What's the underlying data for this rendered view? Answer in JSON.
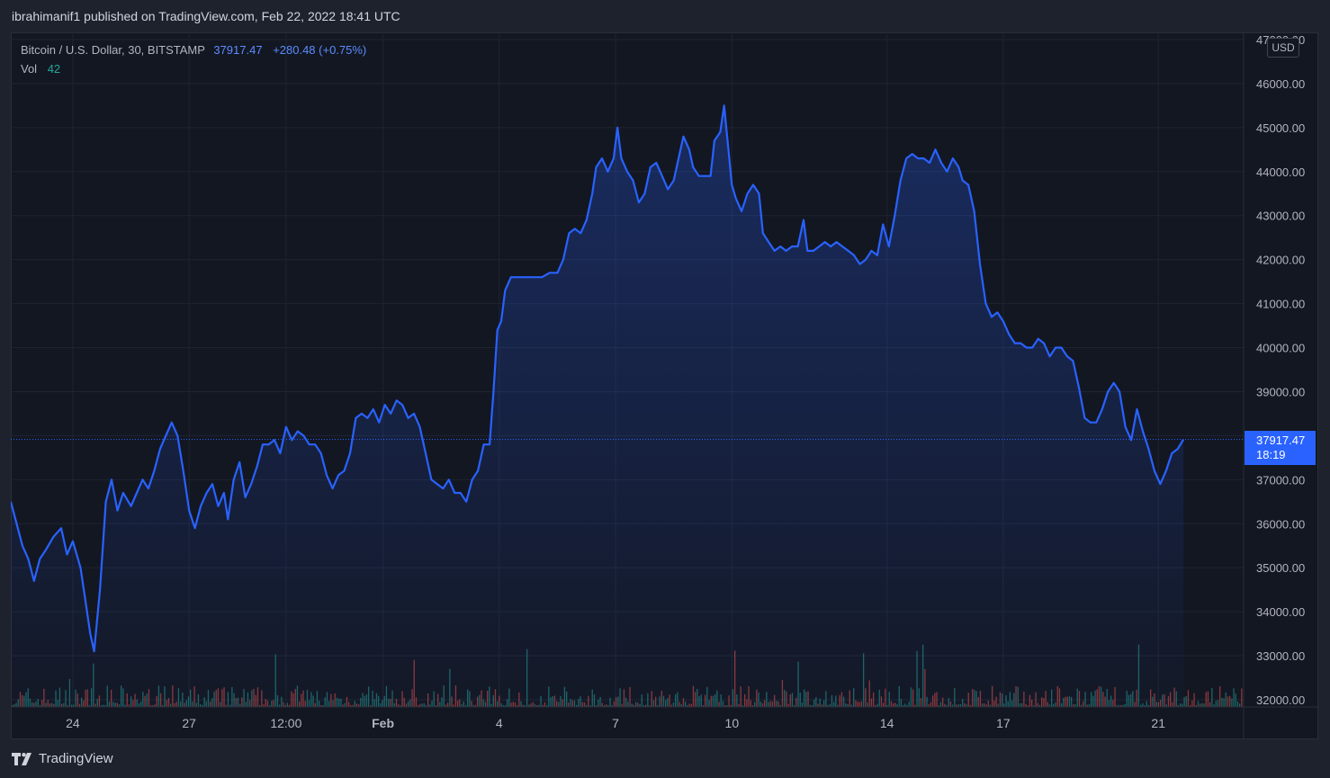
{
  "header": {
    "publish_text": "ibrahimanif1 published on TradingView.com, Feb 22, 2022 18:41 UTC"
  },
  "legend": {
    "symbol": "Bitcoin / U.S. Dollar, 30, BITSTAMP",
    "price": "37917.47",
    "change": "+280.48 (+0.75%)",
    "vol_label": "Vol",
    "vol_value": "42"
  },
  "currency": "USD",
  "price_tag": {
    "price": "37917.47",
    "countdown": "18:19"
  },
  "footer": {
    "brand": "TradingView"
  },
  "colors": {
    "line": "#2962ff",
    "volume_up": "#26a69a",
    "volume_down": "#ef5350",
    "background": "#131722"
  },
  "chart_data": {
    "type": "area",
    "title": "",
    "xlabel": "",
    "ylabel": "",
    "ylim": [
      32000,
      47000
    ],
    "yticks": [
      "32000.00",
      "33000.00",
      "34000.00",
      "35000.00",
      "36000.00",
      "37000.00",
      "38000.00",
      "39000.00",
      "40000.00",
      "41000.00",
      "42000.00",
      "43000.00",
      "44000.00",
      "45000.00",
      "46000.00",
      "47000.00"
    ],
    "xticks": [
      {
        "label": "24",
        "day": 2
      },
      {
        "label": "27",
        "day": 5
      },
      {
        "label": "12:00",
        "day": 7.5
      },
      {
        "label": "Feb",
        "day": 10
      },
      {
        "label": "4",
        "day": 13
      },
      {
        "label": "7",
        "day": 16
      },
      {
        "label": "10",
        "day": 19
      },
      {
        "label": "14",
        "day": 23
      },
      {
        "label": "17",
        "day": 26
      },
      {
        "label": "21",
        "day": 30
      }
    ],
    "x_range": [
      0.4,
      32.2
    ],
    "series": [
      {
        "points": [
          [
            0.4,
            36500
          ],
          [
            0.55,
            36000
          ],
          [
            0.7,
            35500
          ],
          [
            0.85,
            35200
          ],
          [
            1.0,
            34700
          ],
          [
            1.15,
            35200
          ],
          [
            1.3,
            35400
          ],
          [
            1.5,
            35700
          ],
          [
            1.7,
            35900
          ],
          [
            1.85,
            35300
          ],
          [
            2.0,
            35600
          ],
          [
            2.2,
            35000
          ],
          [
            2.35,
            34100
          ],
          [
            2.45,
            33500
          ],
          [
            2.55,
            33100
          ],
          [
            2.7,
            34500
          ],
          [
            2.85,
            36500
          ],
          [
            3.0,
            37000
          ],
          [
            3.15,
            36300
          ],
          [
            3.3,
            36700
          ],
          [
            3.5,
            36400
          ],
          [
            3.65,
            36700
          ],
          [
            3.8,
            37000
          ],
          [
            3.95,
            36800
          ],
          [
            4.1,
            37200
          ],
          [
            4.25,
            37700
          ],
          [
            4.4,
            38000
          ],
          [
            4.55,
            38300
          ],
          [
            4.7,
            38000
          ],
          [
            4.85,
            37200
          ],
          [
            5.0,
            36300
          ],
          [
            5.15,
            35900
          ],
          [
            5.3,
            36400
          ],
          [
            5.45,
            36700
          ],
          [
            5.6,
            36900
          ],
          [
            5.75,
            36400
          ],
          [
            5.9,
            36700
          ],
          [
            6.0,
            36100
          ],
          [
            6.15,
            37000
          ],
          [
            6.3,
            37400
          ],
          [
            6.45,
            36600
          ],
          [
            6.6,
            36900
          ],
          [
            6.75,
            37300
          ],
          [
            6.9,
            37800
          ],
          [
            7.05,
            37800
          ],
          [
            7.2,
            37900
          ],
          [
            7.35,
            37600
          ],
          [
            7.5,
            38200
          ],
          [
            7.65,
            37900
          ],
          [
            7.8,
            38100
          ],
          [
            7.95,
            38000
          ],
          [
            8.1,
            37800
          ],
          [
            8.25,
            37800
          ],
          [
            8.4,
            37600
          ],
          [
            8.55,
            37100
          ],
          [
            8.7,
            36800
          ],
          [
            8.85,
            37100
          ],
          [
            9.0,
            37200
          ],
          [
            9.15,
            37600
          ],
          [
            9.3,
            38400
          ],
          [
            9.45,
            38500
          ],
          [
            9.6,
            38400
          ],
          [
            9.75,
            38600
          ],
          [
            9.9,
            38300
          ],
          [
            10.05,
            38700
          ],
          [
            10.2,
            38500
          ],
          [
            10.35,
            38800
          ],
          [
            10.5,
            38700
          ],
          [
            10.65,
            38400
          ],
          [
            10.8,
            38500
          ],
          [
            10.95,
            38200
          ],
          [
            11.1,
            37600
          ],
          [
            11.25,
            37000
          ],
          [
            11.4,
            36900
          ],
          [
            11.55,
            36800
          ],
          [
            11.7,
            37000
          ],
          [
            11.85,
            36700
          ],
          [
            12.0,
            36700
          ],
          [
            12.15,
            36500
          ],
          [
            12.3,
            37000
          ],
          [
            12.45,
            37200
          ],
          [
            12.6,
            37800
          ],
          [
            12.75,
            37800
          ],
          [
            12.85,
            39000
          ],
          [
            12.95,
            40400
          ],
          [
            13.05,
            40600
          ],
          [
            13.15,
            41300
          ],
          [
            13.3,
            41600
          ],
          [
            13.5,
            41600
          ],
          [
            13.7,
            41600
          ],
          [
            13.9,
            41600
          ],
          [
            14.1,
            41600
          ],
          [
            14.3,
            41700
          ],
          [
            14.5,
            41700
          ],
          [
            14.65,
            42000
          ],
          [
            14.8,
            42600
          ],
          [
            14.95,
            42700
          ],
          [
            15.1,
            42600
          ],
          [
            15.25,
            42900
          ],
          [
            15.4,
            43500
          ],
          [
            15.5,
            44100
          ],
          [
            15.65,
            44300
          ],
          [
            15.8,
            44000
          ],
          [
            15.95,
            44300
          ],
          [
            16.05,
            45000
          ],
          [
            16.15,
            44300
          ],
          [
            16.3,
            44000
          ],
          [
            16.45,
            43800
          ],
          [
            16.6,
            43300
          ],
          [
            16.75,
            43500
          ],
          [
            16.9,
            44100
          ],
          [
            17.05,
            44200
          ],
          [
            17.2,
            43900
          ],
          [
            17.35,
            43600
          ],
          [
            17.5,
            43800
          ],
          [
            17.6,
            44200
          ],
          [
            17.75,
            44800
          ],
          [
            17.9,
            44500
          ],
          [
            18.0,
            44100
          ],
          [
            18.15,
            43900
          ],
          [
            18.3,
            43900
          ],
          [
            18.45,
            43900
          ],
          [
            18.55,
            44700
          ],
          [
            18.7,
            44900
          ],
          [
            18.8,
            45500
          ],
          [
            18.9,
            44600
          ],
          [
            19.0,
            43700
          ],
          [
            19.1,
            43400
          ],
          [
            19.25,
            43100
          ],
          [
            19.4,
            43500
          ],
          [
            19.55,
            43700
          ],
          [
            19.7,
            43500
          ],
          [
            19.8,
            42600
          ],
          [
            19.95,
            42400
          ],
          [
            20.1,
            42200
          ],
          [
            20.25,
            42300
          ],
          [
            20.4,
            42200
          ],
          [
            20.55,
            42300
          ],
          [
            20.7,
            42300
          ],
          [
            20.85,
            42900
          ],
          [
            20.95,
            42200
          ],
          [
            21.1,
            42200
          ],
          [
            21.25,
            42300
          ],
          [
            21.4,
            42400
          ],
          [
            21.55,
            42300
          ],
          [
            21.7,
            42400
          ],
          [
            21.85,
            42300
          ],
          [
            22.0,
            42200
          ],
          [
            22.15,
            42100
          ],
          [
            22.3,
            41900
          ],
          [
            22.45,
            42000
          ],
          [
            22.6,
            42200
          ],
          [
            22.75,
            42100
          ],
          [
            22.9,
            42800
          ],
          [
            23.05,
            42300
          ],
          [
            23.2,
            43000
          ],
          [
            23.35,
            43800
          ],
          [
            23.5,
            44300
          ],
          [
            23.65,
            44400
          ],
          [
            23.8,
            44300
          ],
          [
            23.95,
            44300
          ],
          [
            24.1,
            44200
          ],
          [
            24.25,
            44500
          ],
          [
            24.4,
            44200
          ],
          [
            24.55,
            44000
          ],
          [
            24.7,
            44300
          ],
          [
            24.85,
            44100
          ],
          [
            24.95,
            43800
          ],
          [
            25.1,
            43700
          ],
          [
            25.25,
            43100
          ],
          [
            25.4,
            41900
          ],
          [
            25.55,
            41000
          ],
          [
            25.7,
            40700
          ],
          [
            25.85,
            40800
          ],
          [
            26.0,
            40600
          ],
          [
            26.15,
            40300
          ],
          [
            26.3,
            40100
          ],
          [
            26.45,
            40100
          ],
          [
            26.6,
            40000
          ],
          [
            26.75,
            40000
          ],
          [
            26.9,
            40200
          ],
          [
            27.05,
            40100
          ],
          [
            27.2,
            39800
          ],
          [
            27.35,
            40000
          ],
          [
            27.5,
            40000
          ],
          [
            27.65,
            39800
          ],
          [
            27.8,
            39700
          ],
          [
            27.95,
            39100
          ],
          [
            28.1,
            38400
          ],
          [
            28.25,
            38300
          ],
          [
            28.4,
            38300
          ],
          [
            28.55,
            38600
          ],
          [
            28.7,
            39000
          ],
          [
            28.85,
            39200
          ],
          [
            29.0,
            39000
          ],
          [
            29.15,
            38200
          ],
          [
            29.3,
            37900
          ],
          [
            29.45,
            38600
          ],
          [
            29.6,
            38100
          ],
          [
            29.75,
            37700
          ],
          [
            29.9,
            37200
          ],
          [
            30.05,
            36900
          ],
          [
            30.2,
            37200
          ],
          [
            30.35,
            37600
          ],
          [
            30.5,
            37700
          ],
          [
            30.65,
            37917
          ]
        ]
      }
    ],
    "last_value": 37917.47
  }
}
